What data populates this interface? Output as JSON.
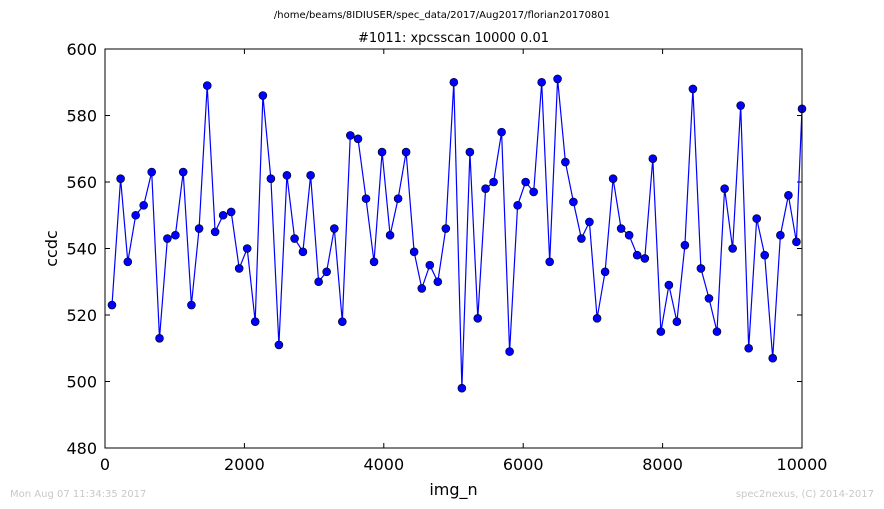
{
  "header": {
    "suptitle": "/home/beams/8IDIUSER/spec_data/2017/Aug2017/florian20170801",
    "title": "#1011: xpcsscan 10000 0.01"
  },
  "footer": {
    "timestamp": "Mon Aug 07 11:34:35 2017",
    "credit": "spec2nexus, (C) 2014-2017"
  },
  "colors": {
    "series": "#0000ff",
    "frame": "#000000",
    "footer": "#c8c8c8"
  },
  "chart_data": {
    "type": "line",
    "title": "#1011: xpcsscan 10000 0.01",
    "xlabel": "img_n",
    "ylabel": "ccdc",
    "xlim": [
      0,
      10000
    ],
    "ylim": [
      480,
      600
    ],
    "xticks": [
      "0",
      "2000",
      "4000",
      "6000",
      "8000",
      "10000"
    ],
    "yticks": [
      "480",
      "500",
      "520",
      "540",
      "560",
      "580",
      "600"
    ],
    "grid": false,
    "legend": "none",
    "marker": "circle",
    "x": [
      100,
      224,
      327,
      440,
      555,
      670,
      782,
      895,
      1010,
      1122,
      1240,
      1350,
      1467,
      1580,
      1695,
      1810,
      1925,
      2040,
      2155,
      2265,
      2380,
      2495,
      2610,
      2720,
      2840,
      2950,
      3065,
      3180,
      3290,
      3405,
      3520,
      3630,
      3745,
      3860,
      3975,
      4090,
      4205,
      4320,
      4435,
      4545,
      4660,
      4775,
      4890,
      5005,
      5120,
      5235,
      5348,
      5460,
      5575,
      5690,
      5805,
      5920,
      6035,
      6150,
      6265,
      6380,
      6493,
      6605,
      6720,
      6835,
      6950,
      7060,
      7175,
      7290,
      7405,
      7520,
      7635,
      7745,
      7860,
      7975,
      8090,
      8205,
      8320,
      8435,
      8550,
      8665,
      8780,
      8890,
      9005,
      9120,
      9235,
      9350,
      9465,
      9580,
      9690,
      9805,
      9920,
      10000
    ],
    "series": [
      {
        "y": [
          523,
          561,
          536,
          550,
          553,
          563,
          513,
          543,
          544,
          563,
          523,
          546,
          589,
          545,
          550,
          551,
          534,
          540,
          518,
          586,
          561,
          511,
          562,
          543,
          539,
          562,
          530,
          533,
          546,
          518,
          574,
          573,
          555,
          536,
          569,
          544,
          555,
          569,
          539,
          528,
          535,
          530,
          546,
          590,
          498,
          569,
          519,
          558,
          560,
          575,
          509,
          553,
          560,
          557,
          590,
          536,
          591,
          566,
          554,
          543,
          548,
          519,
          533,
          561,
          546,
          544,
          538,
          537,
          567,
          515,
          529,
          518,
          541,
          588,
          534,
          525,
          515,
          558,
          540,
          583,
          510,
          549,
          538,
          507,
          544,
          556,
          542,
          582
        ]
      }
    ]
  }
}
